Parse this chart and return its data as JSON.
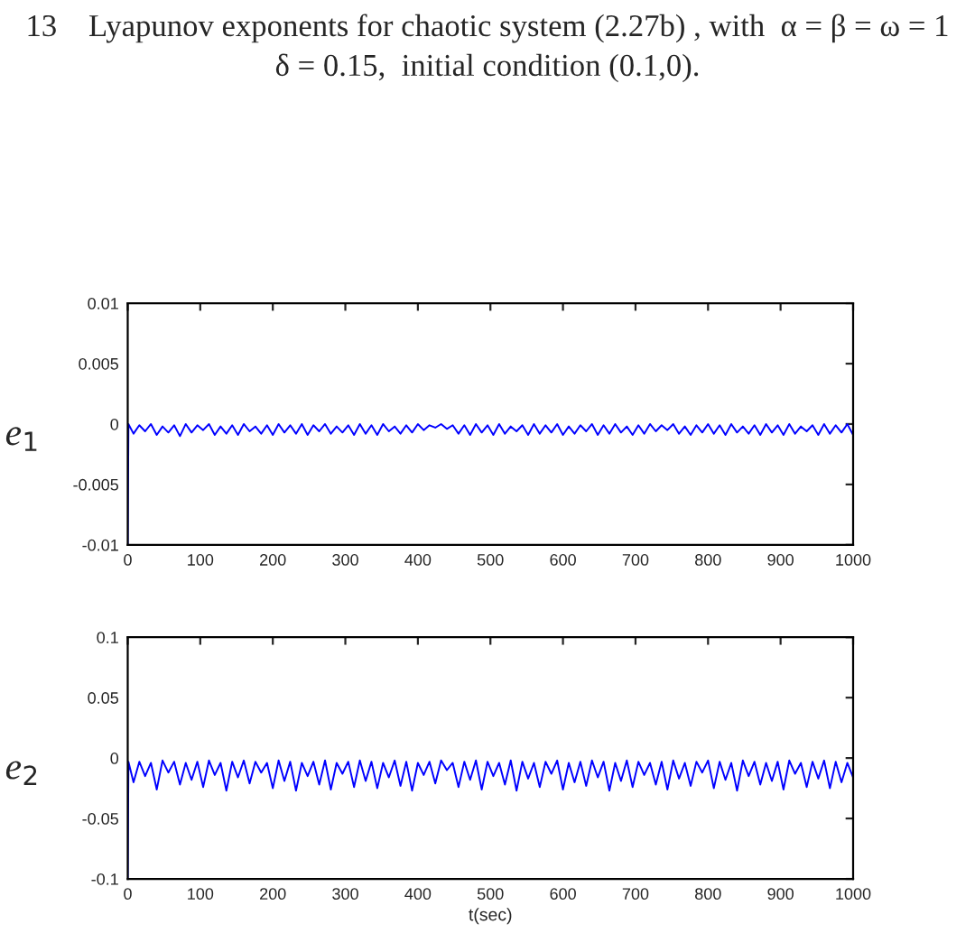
{
  "chart_data": [
    {
      "type": "line",
      "title": "13    Lyapunov exponents for chaotic system (2.27b) , with  α = β = ω = 1\nδ = 0.15,  initial condition (0.1,0).",
      "ylabel": "e$_{1}$",
      "x": [
        0,
        1,
        8,
        16,
        24,
        32,
        40,
        48,
        56,
        64,
        72,
        80,
        88,
        96,
        104,
        112,
        120,
        128,
        136,
        144,
        152,
        160,
        168,
        176,
        184,
        192,
        200,
        208,
        216,
        224,
        232,
        240,
        248,
        256,
        264,
        272,
        280,
        288,
        296,
        304,
        312,
        320,
        328,
        336,
        344,
        352,
        360,
        368,
        376,
        384,
        392,
        400,
        408,
        416,
        424,
        432,
        440,
        448,
        456,
        464,
        472,
        480,
        488,
        496,
        504,
        512,
        520,
        528,
        536,
        544,
        552,
        560,
        568,
        576,
        584,
        592,
        600,
        608,
        616,
        624,
        632,
        640,
        648,
        656,
        664,
        672,
        680,
        688,
        696,
        704,
        712,
        720,
        728,
        736,
        744,
        752,
        760,
        768,
        776,
        784,
        792,
        800,
        808,
        816,
        824,
        832,
        840,
        848,
        856,
        864,
        872,
        880,
        888,
        896,
        904,
        912,
        920,
        928,
        936,
        944,
        952,
        960,
        968,
        976,
        984,
        992,
        1000
      ],
      "series": [
        {
          "color": "#0000ff",
          "values": [
            -0.01,
            0,
            -0.0008,
            -0.0001,
            -0.0006,
            0,
            -0.0009,
            -0.0002,
            -0.0007,
            -0.0001,
            -0.001,
            0,
            -0.0007,
            -0.0001,
            -0.0005,
            0,
            -0.0009,
            -0.0002,
            -0.0008,
            -0.0001,
            -0.0009,
            0,
            -0.0006,
            -0.0002,
            -0.0008,
            -0.0001,
            -0.0009,
            0,
            -0.0007,
            -0.0001,
            -0.0008,
            0,
            -0.0009,
            -0.0001,
            -0.0006,
            0,
            -0.0008,
            -0.0002,
            -0.0007,
            -0.0001,
            -0.0009,
            0,
            -0.0008,
            -0.0001,
            -0.0009,
            0,
            -0.0006,
            -0.0002,
            -0.0008,
            -0.0001,
            -0.0007,
            0,
            -0.0005,
            -0.0001,
            -0.0003,
            0,
            -0.0004,
            -0.0001,
            -0.0008,
            -0.0001,
            -0.0009,
            0,
            -0.0007,
            -0.0001,
            -0.0009,
            0,
            -0.0008,
            -0.0002,
            -0.0006,
            -0.0001,
            -0.0009,
            0,
            -0.0008,
            -0.0001,
            -0.0007,
            0,
            -0.0009,
            -0.0002,
            -0.0008,
            -0.0001,
            -0.0006,
            0,
            -0.0009,
            -0.0001,
            -0.0008,
            0,
            -0.0007,
            -0.0002,
            -0.0009,
            -0.0001,
            -0.0008,
            0,
            -0.0006,
            -0.0001,
            -0.0005,
            0,
            -0.0008,
            -0.0002,
            -0.0009,
            -0.0001,
            -0.0007,
            0,
            -0.0008,
            -0.0001,
            -0.0009,
            0,
            -0.0007,
            -0.0002,
            -0.0008,
            -0.0001,
            -0.0009,
            0,
            -0.0007,
            -0.0001,
            -0.0009,
            0,
            -0.0008,
            -0.0002,
            -0.0006,
            -0.0001,
            -0.0009,
            0,
            -0.0008,
            -0.0001,
            -0.0007,
            0,
            -0.0009
          ]
        }
      ],
      "xlim": [
        0,
        1000
      ],
      "ylim": [
        -0.01,
        0.01
      ],
      "xticks": [
        0,
        100,
        200,
        300,
        400,
        500,
        600,
        700,
        800,
        900,
        1000
      ],
      "yticks": [
        -0.01,
        -0.005,
        0,
        0.005,
        0.01
      ]
    },
    {
      "type": "line",
      "ylabel": "e$_{2}$",
      "xlabel": "t(sec)",
      "x": [
        0,
        1,
        8,
        16,
        24,
        32,
        40,
        48,
        56,
        64,
        72,
        80,
        88,
        96,
        104,
        112,
        120,
        128,
        136,
        144,
        152,
        160,
        168,
        176,
        184,
        192,
        200,
        208,
        216,
        224,
        232,
        240,
        248,
        256,
        264,
        272,
        280,
        288,
        296,
        304,
        312,
        320,
        328,
        336,
        344,
        352,
        360,
        368,
        376,
        384,
        392,
        400,
        408,
        416,
        424,
        432,
        440,
        448,
        456,
        464,
        472,
        480,
        488,
        496,
        504,
        512,
        520,
        528,
        536,
        544,
        552,
        560,
        568,
        576,
        584,
        592,
        600,
        608,
        616,
        624,
        632,
        640,
        648,
        656,
        664,
        672,
        680,
        688,
        696,
        704,
        712,
        720,
        728,
        736,
        744,
        752,
        760,
        768,
        776,
        784,
        792,
        800,
        808,
        816,
        824,
        832,
        840,
        848,
        856,
        864,
        872,
        880,
        888,
        896,
        904,
        912,
        920,
        928,
        936,
        944,
        952,
        960,
        968,
        976,
        984,
        992,
        1000
      ],
      "series": [
        {
          "color": "#0000ff",
          "values": [
            -0.1,
            -0.003,
            -0.02,
            -0.003,
            -0.015,
            -0.004,
            -0.026,
            -0.002,
            -0.012,
            -0.003,
            -0.022,
            -0.004,
            -0.018,
            -0.003,
            -0.024,
            -0.002,
            -0.014,
            -0.004,
            -0.027,
            -0.003,
            -0.016,
            -0.002,
            -0.021,
            -0.003,
            -0.012,
            -0.004,
            -0.025,
            -0.002,
            -0.019,
            -0.003,
            -0.027,
            -0.004,
            -0.015,
            -0.003,
            -0.022,
            -0.002,
            -0.026,
            -0.004,
            -0.013,
            -0.003,
            -0.024,
            -0.002,
            -0.019,
            -0.003,
            -0.025,
            -0.004,
            -0.016,
            -0.002,
            -0.023,
            -0.003,
            -0.027,
            -0.004,
            -0.014,
            -0.003,
            -0.021,
            -0.002,
            -0.01,
            -0.004,
            -0.024,
            -0.003,
            -0.018,
            -0.002,
            -0.026,
            -0.003,
            -0.015,
            -0.004,
            -0.022,
            -0.002,
            -0.027,
            -0.003,
            -0.017,
            -0.004,
            -0.024,
            -0.003,
            -0.013,
            -0.002,
            -0.026,
            -0.004,
            -0.02,
            -0.003,
            -0.023,
            -0.002,
            -0.016,
            -0.003,
            -0.027,
            -0.004,
            -0.019,
            -0.002,
            -0.024,
            -0.003,
            -0.014,
            -0.004,
            -0.022,
            -0.003,
            -0.026,
            -0.002,
            -0.017,
            -0.004,
            -0.023,
            -0.003,
            -0.012,
            -0.002,
            -0.025,
            -0.003,
            -0.018,
            -0.004,
            -0.027,
            -0.002,
            -0.015,
            -0.003,
            -0.022,
            -0.004,
            -0.019,
            -0.003,
            -0.026,
            -0.002,
            -0.013,
            -0.004,
            -0.024,
            -0.003,
            -0.017,
            -0.002,
            -0.025,
            -0.003,
            -0.02,
            -0.004,
            -0.016
          ]
        }
      ],
      "xlim": [
        0,
        1000
      ],
      "ylim": [
        -0.1,
        0.1
      ],
      "xticks": [
        0,
        100,
        200,
        300,
        400,
        500,
        600,
        700,
        800,
        900,
        1000
      ],
      "yticks": [
        -0.1,
        -0.05,
        0,
        0.05,
        0.1
      ]
    }
  ]
}
